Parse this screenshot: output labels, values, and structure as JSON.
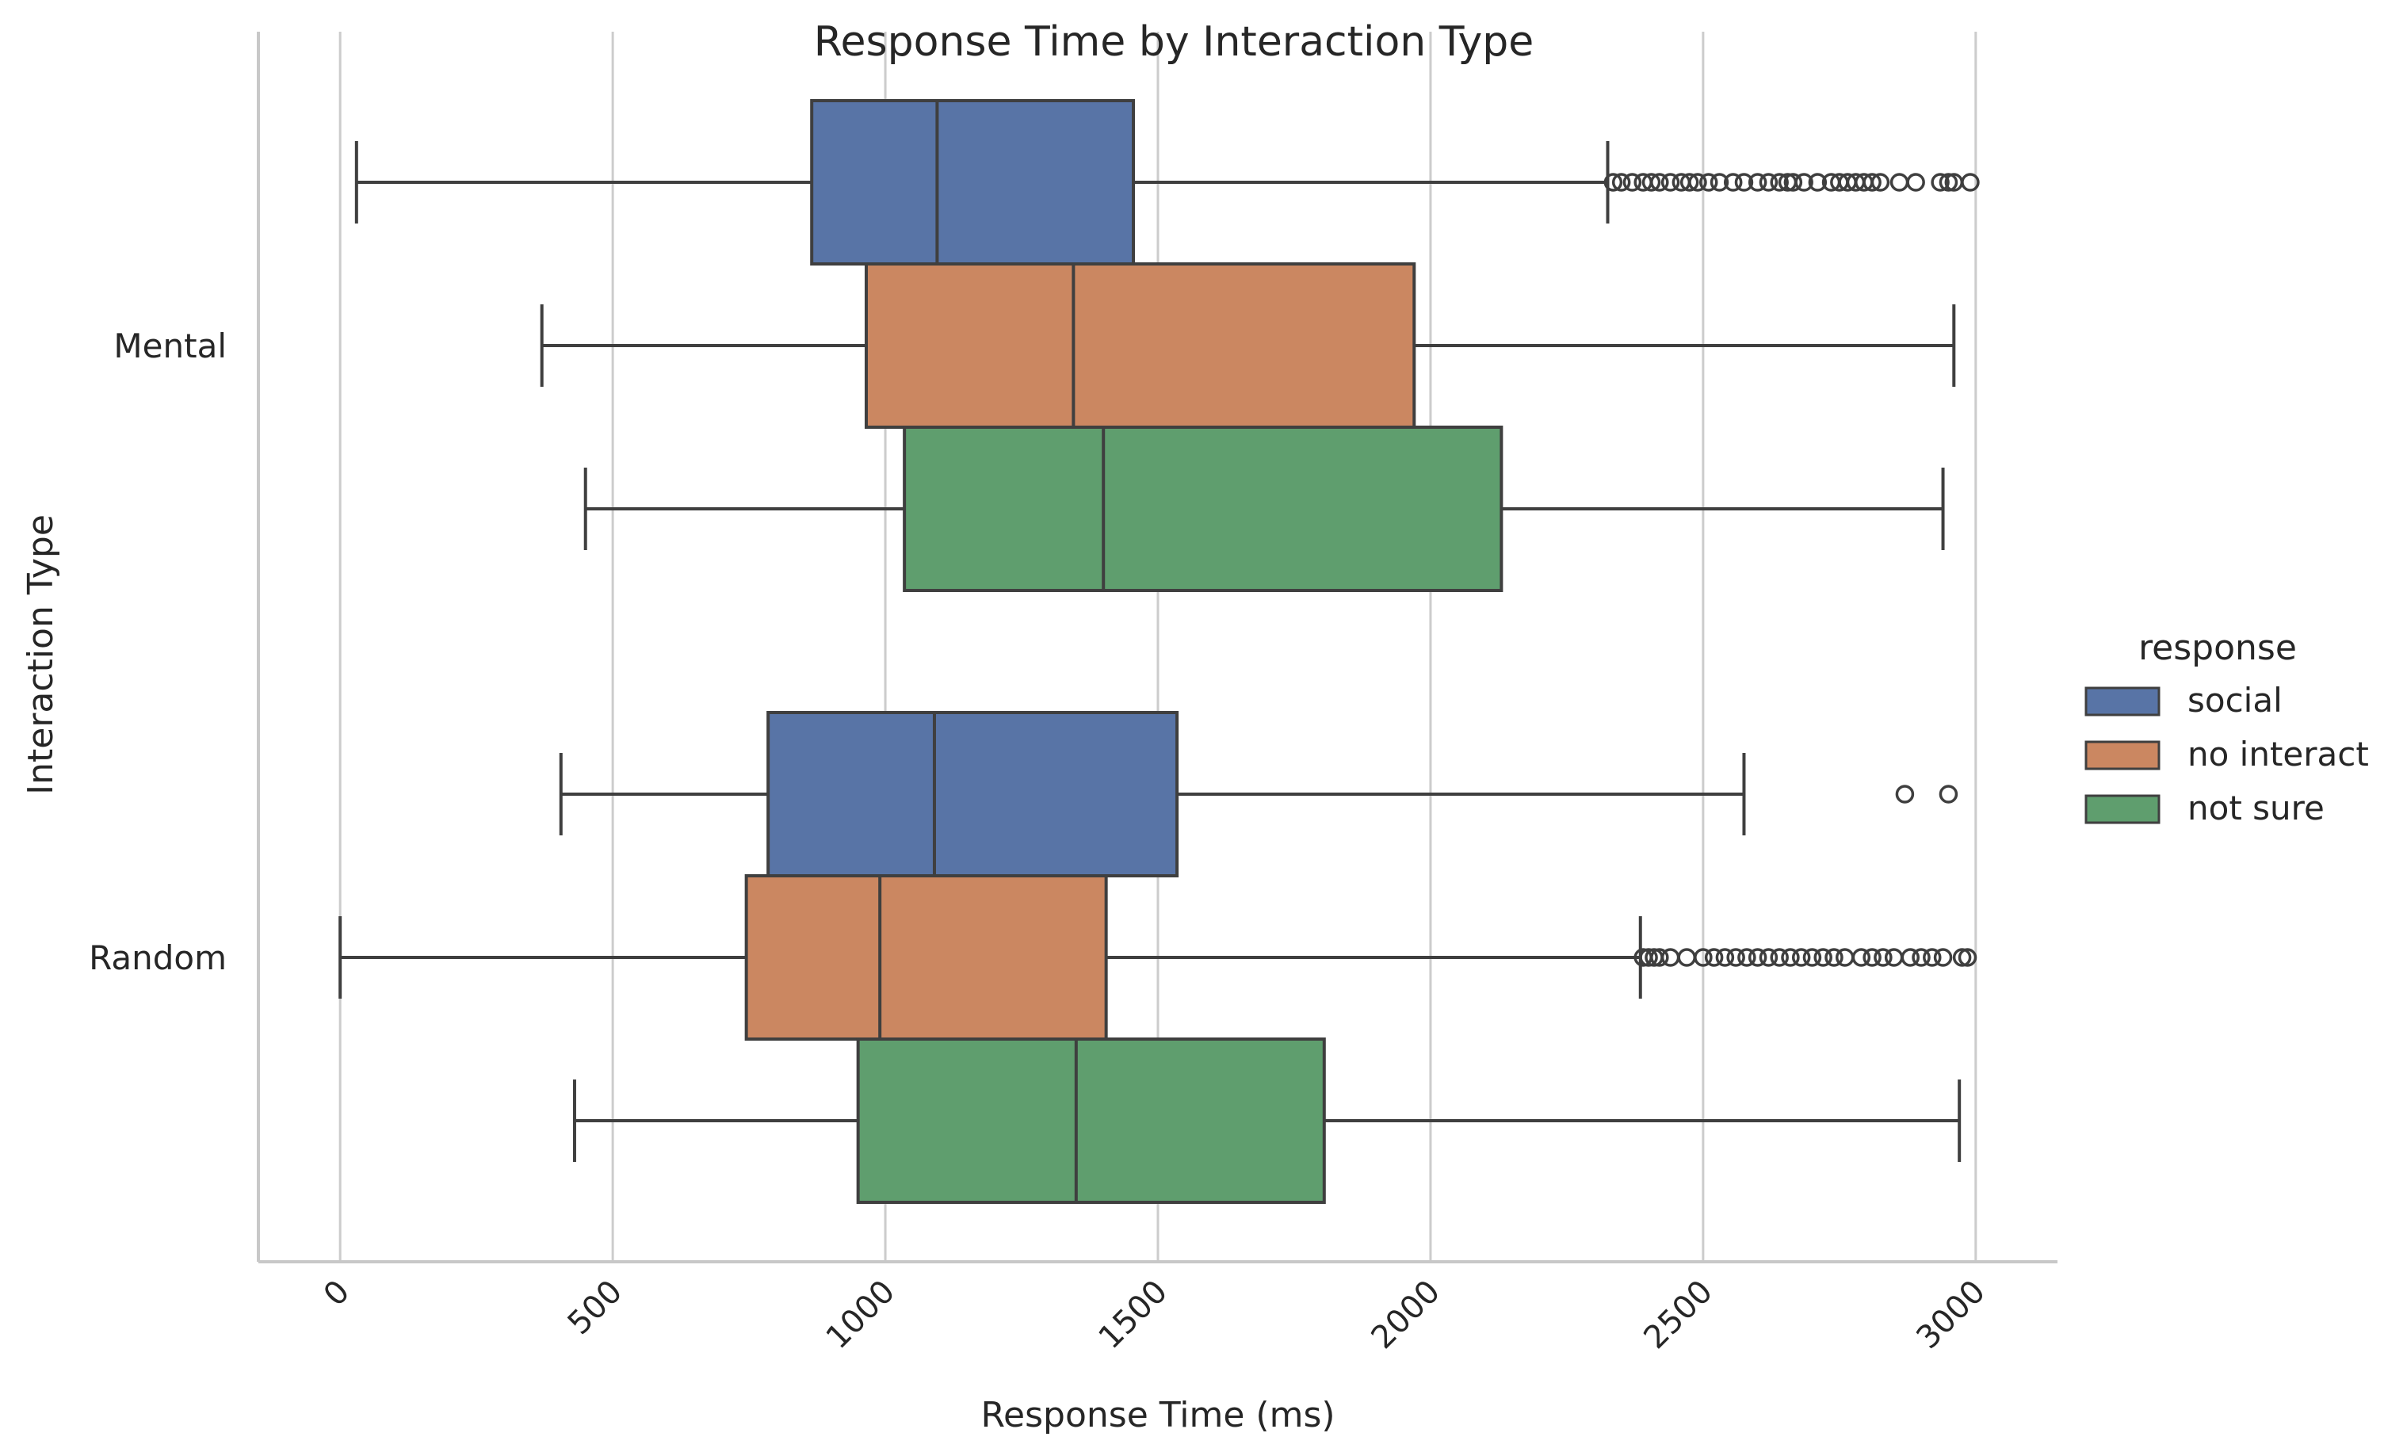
{
  "chart_data": {
    "type": "boxplot",
    "orientation": "horizontal",
    "title": "Response Time by Interaction Type",
    "xlabel": "Response Time (ms)",
    "ylabel": "Interaction Type",
    "xlim": [
      -150,
      3150
    ],
    "xticks": [
      0,
      500,
      1000,
      1500,
      2000,
      2500,
      3000
    ],
    "xtick_labels": [
      "0",
      "500",
      "1000",
      "1500",
      "2000",
      "2500",
      "3000"
    ],
    "xtick_rotation": 45,
    "grid": "vertical",
    "categories": [
      "Mental",
      "Random"
    ],
    "legend": {
      "title": "response",
      "placement": "right",
      "entries": [
        "social",
        "no interact",
        "not sure"
      ]
    },
    "series": [
      {
        "name": "social",
        "color": "#5874a6",
        "boxes": [
          {
            "category": "Mental",
            "whisker_low": 30,
            "q1": 865,
            "median": 1095,
            "q3": 1455,
            "whisker_high": 2325,
            "outliers": [
              2335,
              2350,
              2370,
              2390,
              2405,
              2420,
              2440,
              2460,
              2475,
              2490,
              2510,
              2530,
              2555,
              2575,
              2600,
              2620,
              2640,
              2655,
              2665,
              2685,
              2710,
              2735,
              2750,
              2765,
              2780,
              2795,
              2810,
              2825,
              2860,
              2890,
              2935,
              2950,
              2960,
              2990
            ]
          },
          {
            "category": "Random",
            "whisker_low": 405,
            "q1": 785,
            "median": 1090,
            "q3": 1535,
            "whisker_high": 2575,
            "outliers": [
              2870,
              2950
            ]
          }
        ]
      },
      {
        "name": "no interact",
        "color": "#cb8761",
        "boxes": [
          {
            "category": "Mental",
            "whisker_low": 370,
            "q1": 965,
            "median": 1345,
            "q3": 1970,
            "whisker_high": 2960,
            "outliers": []
          },
          {
            "category": "Random",
            "whisker_low": 0,
            "q1": 745,
            "median": 990,
            "q3": 1405,
            "whisker_high": 2385,
            "outliers": [
              2390,
              2400,
              2410,
              2420,
              2440,
              2470,
              2500,
              2520,
              2540,
              2560,
              2580,
              2600,
              2620,
              2640,
              2660,
              2680,
              2700,
              2720,
              2740,
              2760,
              2790,
              2810,
              2830,
              2850,
              2880,
              2900,
              2920,
              2940,
              2975,
              2985
            ]
          }
        ]
      },
      {
        "name": "not sure",
        "color": "#5f9e6e",
        "boxes": [
          {
            "category": "Mental",
            "whisker_low": 450,
            "q1": 1035,
            "median": 1400,
            "q3": 2130,
            "whisker_high": 2940,
            "outliers": []
          },
          {
            "category": "Random",
            "whisker_low": 430,
            "q1": 950,
            "median": 1350,
            "q3": 1805,
            "whisker_high": 2970,
            "outliers": []
          }
        ]
      }
    ]
  }
}
